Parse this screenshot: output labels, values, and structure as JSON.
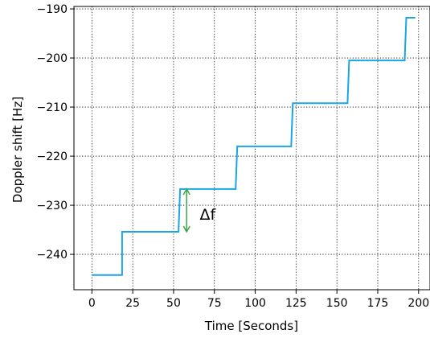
{
  "chart_data": {
    "type": "line",
    "xlabel": "Time [Seconds]",
    "ylabel": "Doppler shift [Hz]",
    "xlim": [
      -11,
      207
    ],
    "ylim": [
      -247.2,
      -189.5
    ],
    "xticks": [
      0,
      25,
      50,
      75,
      100,
      125,
      150,
      175,
      200
    ],
    "yticks": [
      -240,
      -230,
      -220,
      -210,
      -200,
      -190
    ],
    "xtick_labels": [
      "0",
      "25",
      "50",
      "75",
      "100",
      "125",
      "150",
      "175",
      "200"
    ],
    "ytick_labels": [
      "−240",
      "−230",
      "−220",
      "−210",
      "−200",
      "−190"
    ],
    "grid": true,
    "grid_style": "dotted",
    "line_color": "#1ba5e6",
    "series": [
      {
        "x": [
          0,
          18.5,
          18.5,
          53,
          54,
          88,
          89,
          122,
          123,
          156.5,
          157.5,
          191.5,
          192.5,
          198
        ],
        "y": [
          -244.2,
          -244.2,
          -235.4,
          -235.4,
          -226.7,
          -226.7,
          -218.0,
          -218.0,
          -209.2,
          -209.2,
          -200.5,
          -200.5,
          -191.8,
          -191.8
        ]
      }
    ],
    "annotations": [
      {
        "text": "Δf",
        "type": "double-arrow",
        "x": 58,
        "y_from": -235.4,
        "y_to": -226.7,
        "color": "#3aa845",
        "text_x": 66,
        "text_y": -231.8
      }
    ]
  }
}
